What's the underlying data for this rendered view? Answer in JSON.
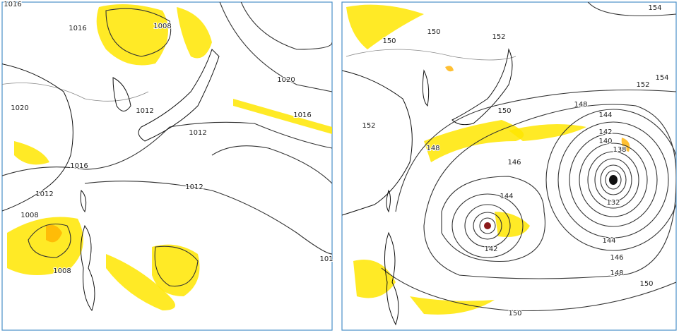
{
  "panels": [
    {
      "contour_labels": [
        "1016",
        "1016",
        "1008",
        "1020",
        "1012",
        "1016",
        "1020",
        "1012",
        "1016",
        "1012",
        "1012",
        "1008",
        "1008",
        "101"
      ]
    },
    {
      "contour_labels": [
        "154",
        "150",
        "150",
        "152",
        "154",
        "152",
        "148",
        "152",
        "150",
        "148",
        "146",
        "144",
        "144",
        "142",
        "140",
        "138",
        "132",
        "142",
        "144",
        "146",
        "148",
        "150",
        "150"
      ]
    }
  ]
}
